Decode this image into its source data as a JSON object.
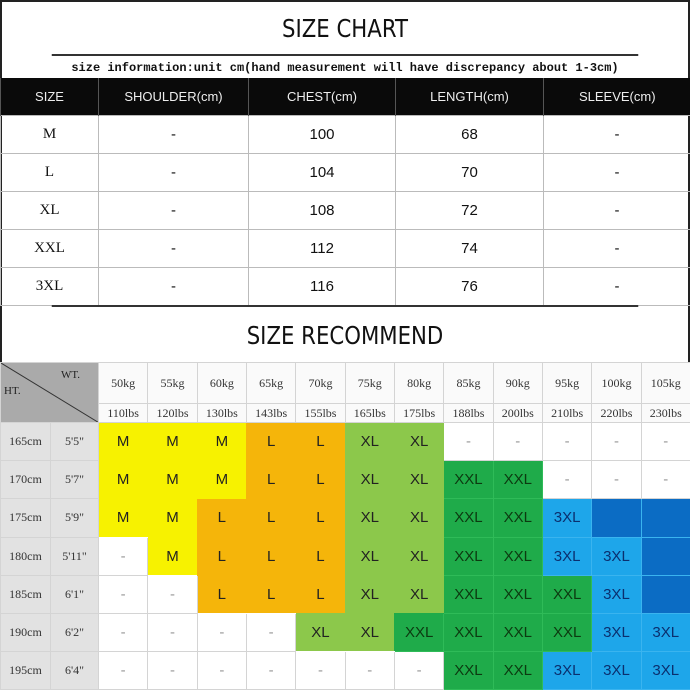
{
  "title": "SIZE CHART",
  "subtitle": "size information:unit cm(hand measurement will have discrepancy about 1-3cm)",
  "size_table": {
    "headers": [
      "SIZE",
      "SHOULDER(cm)",
      "CHEST(cm)",
      "LENGTH(cm)",
      "SLEEVE(cm)"
    ],
    "rows": [
      [
        "M",
        "-",
        "100",
        "68",
        "-"
      ],
      [
        "L",
        "-",
        "104",
        "70",
        "-"
      ],
      [
        "XL",
        "-",
        "108",
        "72",
        "-"
      ],
      [
        "XXL",
        "-",
        "112",
        "74",
        "-"
      ],
      [
        "3XL",
        "-",
        "116",
        "76",
        "-"
      ]
    ]
  },
  "recommend_title": "SIZE RECOMMEND",
  "recommend": {
    "wt_label": "WT.",
    "ht_label": "HT.",
    "kg": [
      "50kg",
      "55kg",
      "60kg",
      "65kg",
      "70kg",
      "75kg",
      "80kg",
      "85kg",
      "90kg",
      "95kg",
      "100kg",
      "105kg"
    ],
    "lbs": [
      "110lbs",
      "120lbs",
      "130lbs",
      "143lbs",
      "155lbs",
      "165lbs",
      "175lbs",
      "188lbs",
      "200lbs",
      "210lbs",
      "220lbs",
      "230lbs"
    ],
    "colors": {
      "Y": "#f7f200",
      "O": "#f5b50a",
      "G": "#8cc84b",
      "D": "#1fab4a",
      "B": "#1ea6ea",
      "N": "#0b6cc4",
      "W": "#ffffff"
    },
    "rows": [
      {
        "cm": "165cm",
        "ft": "5'5\"",
        "sizes": [
          "M",
          "M",
          "M",
          "L",
          "L",
          "XL",
          "XL",
          "-",
          "-",
          "-",
          "-",
          "-"
        ],
        "fill": [
          "Y",
          "Y",
          "Y",
          "O",
          "O",
          "G",
          "G",
          "W",
          "W",
          "W",
          "W",
          "W"
        ]
      },
      {
        "cm": "170cm",
        "ft": "5'7\"",
        "sizes": [
          "M",
          "M",
          "M",
          "L",
          "L",
          "XL",
          "XL",
          "XXL",
          "XXL",
          "-",
          "-",
          "-"
        ],
        "fill": [
          "Y",
          "Y",
          "Y",
          "O",
          "O",
          "G",
          "G",
          "D",
          "D",
          "W",
          "W",
          "W"
        ]
      },
      {
        "cm": "175cm",
        "ft": "5'9\"",
        "sizes": [
          "M",
          "M",
          "L",
          "L",
          "L",
          "XL",
          "XL",
          "XXL",
          "XXL",
          "3XL",
          "",
          ""
        ],
        "fill": [
          "Y",
          "Y",
          "O",
          "O",
          "O",
          "G",
          "G",
          "D",
          "D",
          "B",
          "N",
          "N"
        ]
      },
      {
        "cm": "180cm",
        "ft": "5'11\"",
        "sizes": [
          "-",
          "M",
          "L",
          "L",
          "L",
          "XL",
          "XL",
          "XXL",
          "XXL",
          "3XL",
          "3XL",
          ""
        ],
        "fill": [
          "W",
          "Y",
          "O",
          "O",
          "O",
          "G",
          "G",
          "D",
          "D",
          "B",
          "B",
          "N"
        ]
      },
      {
        "cm": "185cm",
        "ft": "6'1\"",
        "sizes": [
          "-",
          "-",
          "L",
          "L",
          "L",
          "XL",
          "XL",
          "XXL",
          "XXL",
          "XXL",
          "3XL",
          ""
        ],
        "fill": [
          "W",
          "W",
          "O",
          "O",
          "O",
          "G",
          "G",
          "D",
          "D",
          "D",
          "B",
          "N"
        ]
      },
      {
        "cm": "190cm",
        "ft": "6'2\"",
        "sizes": [
          "-",
          "-",
          "-",
          "-",
          "XL",
          "XL",
          "XXL",
          "XXL",
          "XXL",
          "XXL",
          "3XL",
          "3XL"
        ],
        "fill": [
          "W",
          "W",
          "W",
          "W",
          "G",
          "G",
          "D",
          "D",
          "D",
          "D",
          "B",
          "B"
        ]
      },
      {
        "cm": "195cm",
        "ft": "6'4\"",
        "sizes": [
          "-",
          "-",
          "-",
          "-",
          "-",
          "-",
          "-",
          "XXL",
          "XXL",
          "3XL",
          "3XL",
          "3XL"
        ],
        "fill": [
          "W",
          "W",
          "W",
          "W",
          "W",
          "W",
          "W",
          "D",
          "D",
          "B",
          "B",
          "B"
        ]
      }
    ]
  }
}
